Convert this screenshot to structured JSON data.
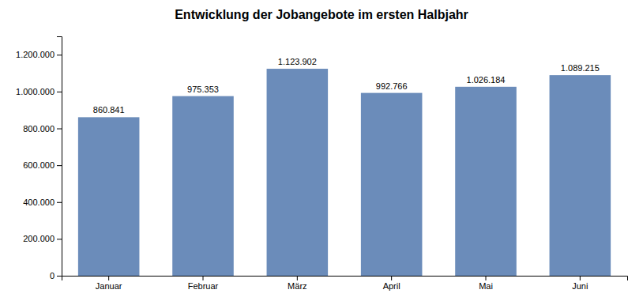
{
  "chart_data": {
    "type": "bar",
    "title": "Entwicklung der Jobangebote im ersten Halbjahr",
    "categories": [
      "Januar",
      "Februar",
      "März",
      "April",
      "Mai",
      "Juni"
    ],
    "values": [
      860841,
      975353,
      1123902,
      992766,
      1026184,
      1089215
    ],
    "value_labels": [
      "860.841",
      "975.353",
      "1.123.902",
      "992.766",
      "1.026.184",
      "1.089.215"
    ],
    "data_labels": true,
    "color": "#6b8cba",
    "ylim": [
      0,
      1300000
    ],
    "yticks": [
      0,
      {
        "value": 200000,
        "label": "200.000"
      },
      {
        "value": 400000,
        "label": "400.000"
      },
      {
        "value": 600000,
        "label": "600.000"
      },
      {
        "value": 800000,
        "label": "800.000"
      },
      {
        "value": 1000000,
        "label": "1.000.000"
      },
      {
        "value": 1200000,
        "label": "1.200.000"
      }
    ],
    "grid": false
  }
}
